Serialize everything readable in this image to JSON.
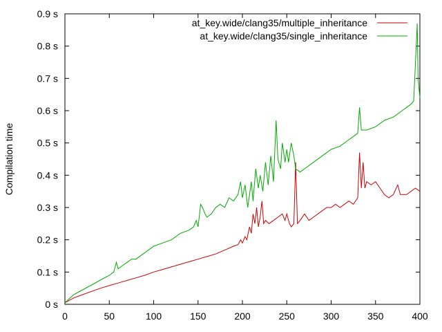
{
  "chart_data": {
    "type": "line",
    "title": "",
    "xlabel": "",
    "ylabel": "Compilation time",
    "xlim": [
      0,
      400
    ],
    "ylim": [
      0,
      0.9
    ],
    "xticks": [
      0,
      50,
      100,
      150,
      200,
      250,
      300,
      350,
      400
    ],
    "yticks": [
      0,
      0.1,
      0.2,
      0.3,
      0.4,
      0.5,
      0.6,
      0.7,
      0.8,
      0.9
    ],
    "xtick_labels": [
      "0",
      "50",
      "100",
      "150",
      "200",
      "250",
      "300",
      "350",
      "400"
    ],
    "ytick_labels": [
      "0 s",
      "0.1 s",
      "0.2 s",
      "0.3 s",
      "0.4 s",
      "0.5 s",
      "0.6 s",
      "0.7 s",
      "0.8 s",
      "0.9 s"
    ],
    "grid": false,
    "legend_position": "top-right",
    "series": [
      {
        "name": "at_key.wide/clang35/multiple_inheritance",
        "color": "#cc0000",
        "points": [
          [
            0,
            0.005
          ],
          [
            10,
            0.02
          ],
          [
            20,
            0.03
          ],
          [
            30,
            0.04
          ],
          [
            40,
            0.05
          ],
          [
            50,
            0.058
          ],
          [
            60,
            0.066
          ],
          [
            70,
            0.074
          ],
          [
            80,
            0.082
          ],
          [
            90,
            0.09
          ],
          [
            100,
            0.1
          ],
          [
            110,
            0.108
          ],
          [
            120,
            0.116
          ],
          [
            130,
            0.124
          ],
          [
            140,
            0.132
          ],
          [
            150,
            0.14
          ],
          [
            160,
            0.148
          ],
          [
            170,
            0.156
          ],
          [
            180,
            0.168
          ],
          [
            190,
            0.18
          ],
          [
            195,
            0.185
          ],
          [
            198,
            0.2
          ],
          [
            200,
            0.19
          ],
          [
            203,
            0.21
          ],
          [
            205,
            0.2
          ],
          [
            208,
            0.24
          ],
          [
            210,
            0.22
          ],
          [
            212,
            0.28
          ],
          [
            214,
            0.25
          ],
          [
            216,
            0.3
          ],
          [
            218,
            0.24
          ],
          [
            220,
            0.27
          ],
          [
            222,
            0.32
          ],
          [
            224,
            0.25
          ],
          [
            226,
            0.26
          ],
          [
            230,
            0.25
          ],
          [
            235,
            0.26
          ],
          [
            240,
            0.27
          ],
          [
            245,
            0.28
          ],
          [
            248,
            0.26
          ],
          [
            250,
            0.28
          ],
          [
            253,
            0.25
          ],
          [
            255,
            0.24
          ],
          [
            258,
            0.25
          ],
          [
            260,
            0.44
          ],
          [
            262,
            0.25
          ],
          [
            265,
            0.26
          ],
          [
            270,
            0.28
          ],
          [
            275,
            0.26
          ],
          [
            280,
            0.27
          ],
          [
            285,
            0.28
          ],
          [
            290,
            0.29
          ],
          [
            295,
            0.3
          ],
          [
            300,
            0.3
          ],
          [
            305,
            0.31
          ],
          [
            310,
            0.3
          ],
          [
            315,
            0.31
          ],
          [
            320,
            0.32
          ],
          [
            325,
            0.31
          ],
          [
            330,
            0.33
          ],
          [
            332,
            0.47
          ],
          [
            334,
            0.36
          ],
          [
            336,
            0.44
          ],
          [
            338,
            0.36
          ],
          [
            340,
            0.38
          ],
          [
            345,
            0.37
          ],
          [
            350,
            0.38
          ],
          [
            355,
            0.36
          ],
          [
            360,
            0.34
          ],
          [
            365,
            0.33
          ],
          [
            370,
            0.34
          ],
          [
            375,
            0.37
          ],
          [
            378,
            0.34
          ],
          [
            380,
            0.34
          ],
          [
            385,
            0.34
          ],
          [
            390,
            0.35
          ],
          [
            395,
            0.36
          ],
          [
            400,
            0.35
          ]
        ]
      },
      {
        "name": "at_key.wide/clang35/single_inheritance",
        "color": "#00aa00",
        "points": [
          [
            0,
            0.005
          ],
          [
            10,
            0.03
          ],
          [
            20,
            0.045
          ],
          [
            30,
            0.06
          ],
          [
            40,
            0.075
          ],
          [
            50,
            0.09
          ],
          [
            55,
            0.1
          ],
          [
            58,
            0.13
          ],
          [
            60,
            0.11
          ],
          [
            65,
            0.12
          ],
          [
            70,
            0.13
          ],
          [
            75,
            0.14
          ],
          [
            80,
            0.14
          ],
          [
            90,
            0.16
          ],
          [
            100,
            0.18
          ],
          [
            110,
            0.19
          ],
          [
            120,
            0.2
          ],
          [
            130,
            0.22
          ],
          [
            140,
            0.23
          ],
          [
            145,
            0.24
          ],
          [
            148,
            0.26
          ],
          [
            150,
            0.24
          ],
          [
            153,
            0.31
          ],
          [
            155,
            0.3
          ],
          [
            158,
            0.28
          ],
          [
            160,
            0.27
          ],
          [
            165,
            0.28
          ],
          [
            170,
            0.3
          ],
          [
            175,
            0.31
          ],
          [
            180,
            0.3
          ],
          [
            185,
            0.33
          ],
          [
            190,
            0.32
          ],
          [
            195,
            0.34
          ],
          [
            198,
            0.38
          ],
          [
            200,
            0.33
          ],
          [
            203,
            0.37
          ],
          [
            206,
            0.3
          ],
          [
            210,
            0.38
          ],
          [
            212,
            0.32
          ],
          [
            215,
            0.42
          ],
          [
            218,
            0.36
          ],
          [
            220,
            0.4
          ],
          [
            223,
            0.35
          ],
          [
            226,
            0.44
          ],
          [
            229,
            0.37
          ],
          [
            232,
            0.46
          ],
          [
            235,
            0.38
          ],
          [
            238,
            0.57
          ],
          [
            240,
            0.45
          ],
          [
            243,
            0.42
          ],
          [
            245,
            0.5
          ],
          [
            248,
            0.44
          ],
          [
            250,
            0.48
          ],
          [
            252,
            0.44
          ],
          [
            255,
            0.5
          ],
          [
            258,
            0.46
          ],
          [
            260,
            0.42
          ],
          [
            265,
            0.41
          ],
          [
            270,
            0.42
          ],
          [
            280,
            0.44
          ],
          [
            290,
            0.46
          ],
          [
            300,
            0.48
          ],
          [
            310,
            0.49
          ],
          [
            320,
            0.51
          ],
          [
            325,
            0.52
          ],
          [
            330,
            0.53
          ],
          [
            332,
            0.61
          ],
          [
            334,
            0.54
          ],
          [
            340,
            0.54
          ],
          [
            350,
            0.55
          ],
          [
            360,
            0.57
          ],
          [
            370,
            0.58
          ],
          [
            380,
            0.6
          ],
          [
            385,
            0.61
          ],
          [
            390,
            0.62
          ],
          [
            393,
            0.63
          ],
          [
            395,
            0.75
          ],
          [
            397,
            0.87
          ],
          [
            398,
            0.7
          ],
          [
            400,
            0.64
          ]
        ]
      }
    ]
  }
}
